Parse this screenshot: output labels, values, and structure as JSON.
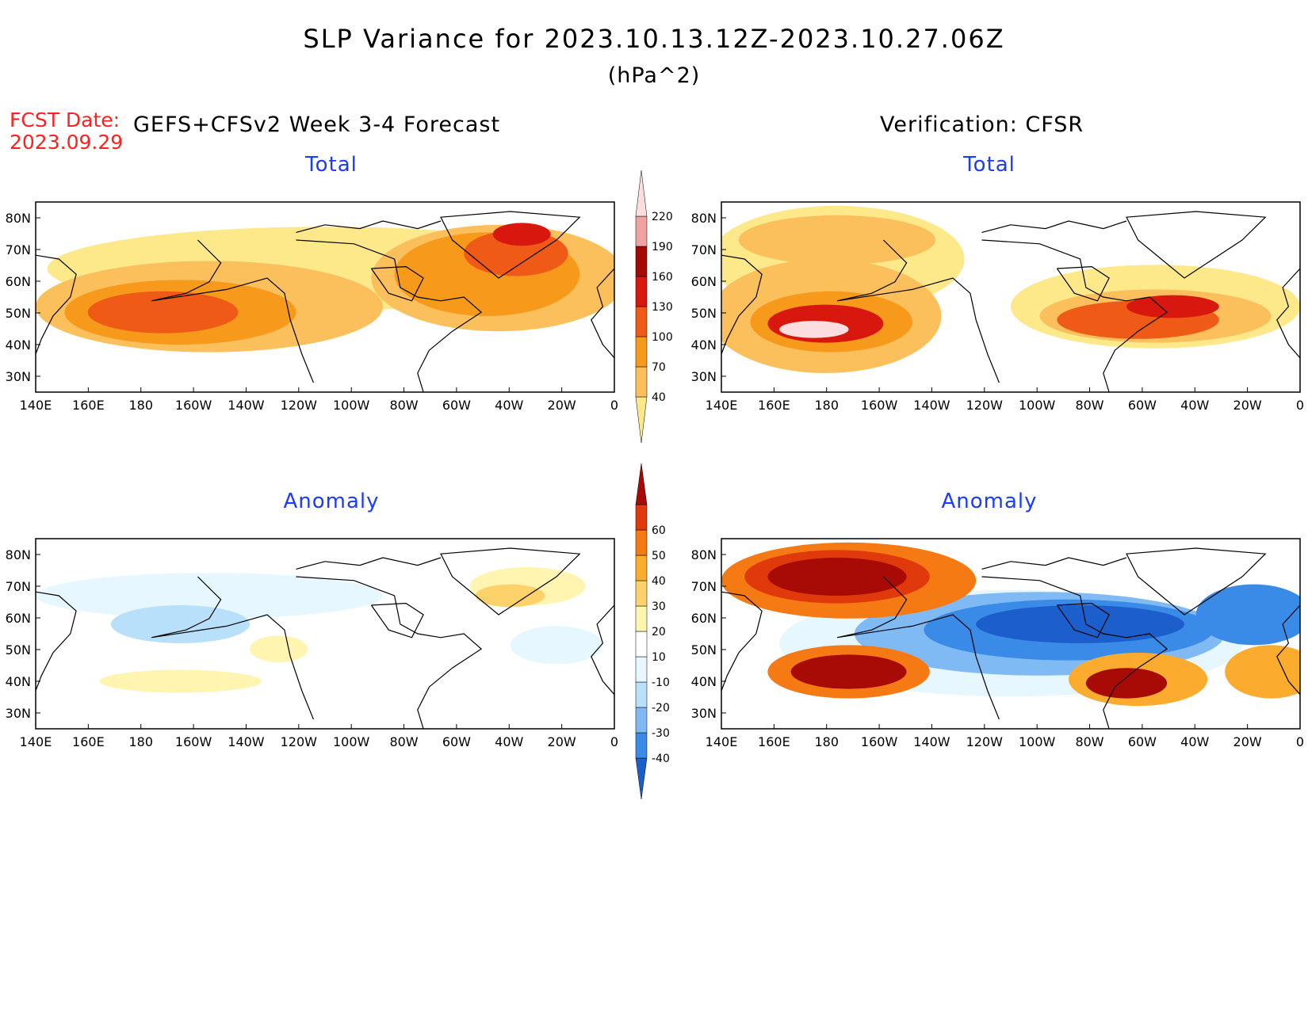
{
  "header": {
    "title": "SLP Variance for 2023.10.13.12Z-2023.10.27.06Z",
    "units": "(hPa^2)",
    "fcst_date_label": "FCST Date:",
    "fcst_date_value": "2023.09.29",
    "model_label": "GEFS+CFSv2 Week 3-4 Forecast",
    "verification_label": "Verification: CFSR"
  },
  "panels": {
    "forecast_total": "Total",
    "verif_total": "Total",
    "forecast_anomaly": "Anomaly",
    "verif_anomaly": "Anomaly"
  },
  "axes": {
    "lon_labels": [
      "140E",
      "160E",
      "180",
      "160W",
      "140W",
      "120W",
      "100W",
      "80W",
      "60W",
      "40W",
      "20W",
      "0"
    ],
    "lat_labels": [
      "80N",
      "70N",
      "60N",
      "50N",
      "40N",
      "30N"
    ]
  },
  "colorbars": {
    "total": {
      "labels": [
        "40",
        "70",
        "100",
        "130",
        "160",
        "190",
        "220"
      ],
      "colors": [
        "#fde98a",
        "#fbc05c",
        "#f79a1c",
        "#ef5a16",
        "#d8180e",
        "#a50905",
        "#f0a2a2",
        "#fddede"
      ]
    },
    "anomaly": {
      "labels": [
        "-40",
        "-30",
        "-20",
        "-10",
        "10",
        "20",
        "30",
        "40",
        "50",
        "60"
      ],
      "colors": [
        "#1c5fcc",
        "#3a8ae8",
        "#7fbaf4",
        "#b8e0fb",
        "#e6f7ff",
        "#ffffff",
        "#fff4b0",
        "#fdd26a",
        "#fbac2e",
        "#f67a14",
        "#e03a0c",
        "#a80a05"
      ]
    }
  }
}
